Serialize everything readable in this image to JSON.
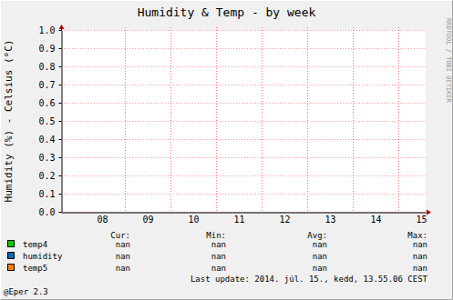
{
  "chart_data": {
    "type": "line",
    "title": "Humidity & Temp - by week",
    "ylabel": "Humidity (%) - Celsius (°C)",
    "x": [],
    "xlim": [
      7.1,
      15.1
    ],
    "xticks": [
      {
        "value": 8,
        "label": "08"
      },
      {
        "value": 9,
        "label": "09"
      },
      {
        "value": 10,
        "label": "10"
      },
      {
        "value": 11,
        "label": "11"
      },
      {
        "value": 12,
        "label": "12"
      },
      {
        "value": 13,
        "label": "13"
      },
      {
        "value": 14,
        "label": "14"
      },
      {
        "value": 15,
        "label": "15"
      }
    ],
    "ylim": [
      0,
      1
    ],
    "yticks": [
      {
        "value": 0,
        "label": "0.0"
      },
      0.1,
      0.2,
      0.3,
      0.4,
      0.5,
      0.6,
      0.7,
      0.8,
      0.9,
      {
        "value": 1,
        "label": "1.0"
      }
    ],
    "grid": true,
    "legend_columns": [
      "Cur:",
      "Min:",
      "Avg:",
      "Max:"
    ],
    "series": [
      {
        "name": "temp4",
        "color": "#00cc00",
        "values": [],
        "stats": [
          "nan",
          "nan",
          "nan",
          "nan"
        ]
      },
      {
        "name": "humidity",
        "color": "#0066b3",
        "values": [],
        "stats": [
          "nan",
          "nan",
          "nan",
          "nan"
        ]
      },
      {
        "name": "temp5",
        "color": "#ff8000",
        "values": [],
        "stats": [
          "nan",
          "nan",
          "nan",
          "nan"
        ]
      }
    ],
    "annotations": [
      "RRDTOOL / TOBI OETIKER",
      "Last update: 2014. júl. 15., kedd, 13.55.06 CEST",
      "@Eper 2.3"
    ]
  }
}
